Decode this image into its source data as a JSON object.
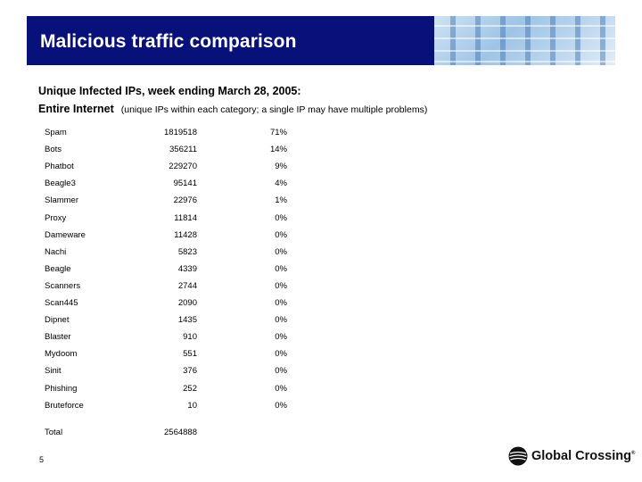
{
  "slide": {
    "title": "Malicious traffic comparison",
    "heading": "Unique Infected IPs, week ending March 28, 2005:",
    "subheading": "Entire Internet",
    "note": "(unique IPs within each category; a single IP may have multiple problems)",
    "page_number": "5"
  },
  "rows": [
    {
      "name": "Spam",
      "count": "1819518",
      "pct": "71%"
    },
    {
      "name": "Bots",
      "count": "356211",
      "pct": "14%"
    },
    {
      "name": "Phatbot",
      "count": "229270",
      "pct": "9%"
    },
    {
      "name": "Beagle3",
      "count": "95141",
      "pct": "4%"
    },
    {
      "name": "Slammer",
      "count": "22976",
      "pct": "1%"
    },
    {
      "name": "Proxy",
      "count": "11814",
      "pct": "0%"
    },
    {
      "name": "Dameware",
      "count": "11428",
      "pct": "0%"
    },
    {
      "name": "Nachi",
      "count": "5823",
      "pct": "0%"
    },
    {
      "name": "Beagle",
      "count": "4339",
      "pct": "0%"
    },
    {
      "name": "Scanners",
      "count": "2744",
      "pct": "0%"
    },
    {
      "name": "Scan445",
      "count": "2090",
      "pct": "0%"
    },
    {
      "name": "Dipnet",
      "count": "1435",
      "pct": "0%"
    },
    {
      "name": "Blaster",
      "count": "910",
      "pct": "0%"
    },
    {
      "name": "Mydoom",
      "count": "551",
      "pct": "0%"
    },
    {
      "name": "Sinit",
      "count": "376",
      "pct": "0%"
    },
    {
      "name": "Phishing",
      "count": "252",
      "pct": "0%"
    },
    {
      "name": "Bruteforce",
      "count": "10",
      "pct": "0%"
    }
  ],
  "total": {
    "label": "Total",
    "count": "2564888"
  },
  "logo": {
    "text": "Global Crossing",
    "mark": "®",
    "icon": "global-crossing-logo-icon"
  },
  "colors": {
    "banner": "#08107a",
    "text": "#000000"
  }
}
